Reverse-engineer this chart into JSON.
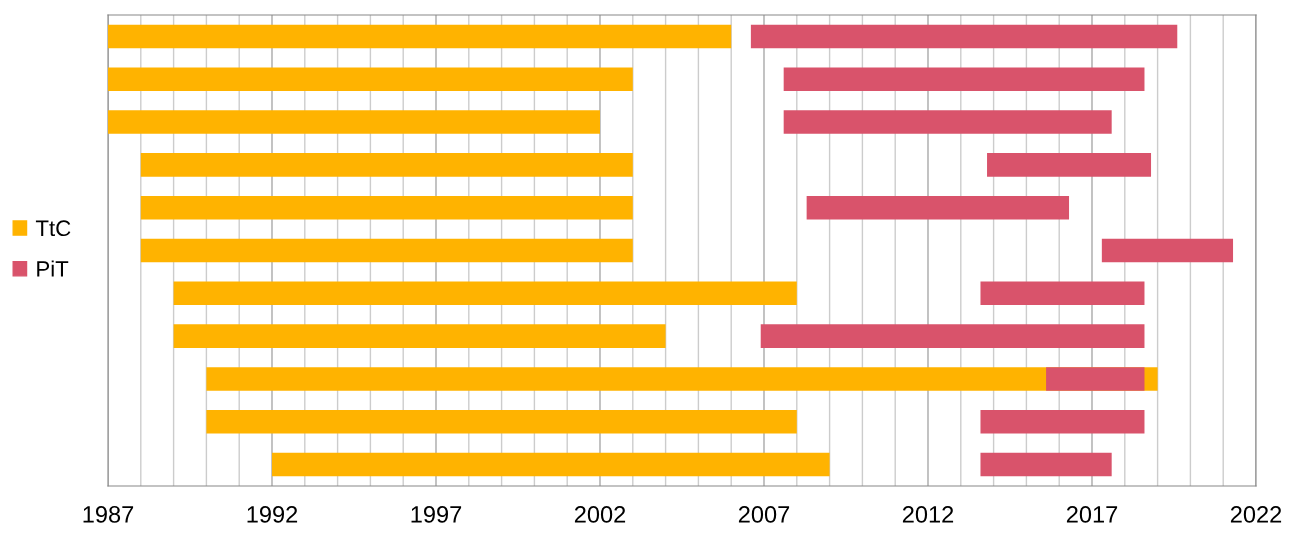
{
  "chart_data": {
    "type": "bar",
    "orientation": "horizontal",
    "categories": [
      null,
      null,
      null,
      null,
      null,
      null,
      null,
      null,
      null,
      null,
      null
    ],
    "series": [
      {
        "name": "TtC",
        "color": "#ffb300",
        "base": [
          1987,
          1987,
          1987,
          1988,
          1988,
          1988,
          1989,
          1989,
          1990,
          1990,
          1992
        ],
        "values": [
          19,
          16,
          15,
          15,
          15,
          15,
          19,
          15,
          29,
          18,
          17
        ]
      },
      {
        "name": "PiT",
        "color": "#d9536b",
        "base": [
          2006.6,
          2007.6,
          2007.6,
          2013.8,
          2008.3,
          2017.3,
          2013.6,
          2006.9,
          2015.6,
          2013.6,
          2013.6
        ],
        "values": [
          13,
          11,
          10,
          5,
          8,
          4,
          5,
          11.7,
          3,
          5,
          4
        ]
      }
    ],
    "xlim": [
      1987,
      2022
    ],
    "xticks": [
      1987,
      {
        "value": 1988,
        "label": null
      },
      {
        "value": 1989,
        "label": null
      },
      {
        "value": 1990,
        "label": null
      },
      {
        "value": 1991,
        "label": null
      },
      1992,
      {
        "value": 1993,
        "label": null
      },
      {
        "value": 1994,
        "label": null
      },
      {
        "value": 1995,
        "label": null
      },
      {
        "value": 1996,
        "label": null
      },
      1997,
      {
        "value": 1998,
        "label": null
      },
      {
        "value": 1999,
        "label": null
      },
      {
        "value": 2000,
        "label": null
      },
      {
        "value": 2001,
        "label": null
      },
      2002,
      {
        "value": 2003,
        "label": null
      },
      {
        "value": 2004,
        "label": null
      },
      {
        "value": 2005,
        "label": null
      },
      {
        "value": 2006,
        "label": null
      },
      2007,
      {
        "value": 2008,
        "label": null
      },
      {
        "value": 2009,
        "label": null
      },
      {
        "value": 2010,
        "label": null
      },
      {
        "value": 2011,
        "label": null
      },
      2012,
      {
        "value": 2013,
        "label": null
      },
      {
        "value": 2014,
        "label": null
      },
      {
        "value": 2015,
        "label": null
      },
      {
        "value": 2016,
        "label": null
      },
      2017,
      {
        "value": 2018,
        "label": null
      },
      {
        "value": 2019,
        "label": null
      },
      {
        "value": 2020,
        "label": null
      },
      {
        "value": 2021,
        "label": null
      },
      2022
    ],
    "grid": "x",
    "legend": "left"
  }
}
